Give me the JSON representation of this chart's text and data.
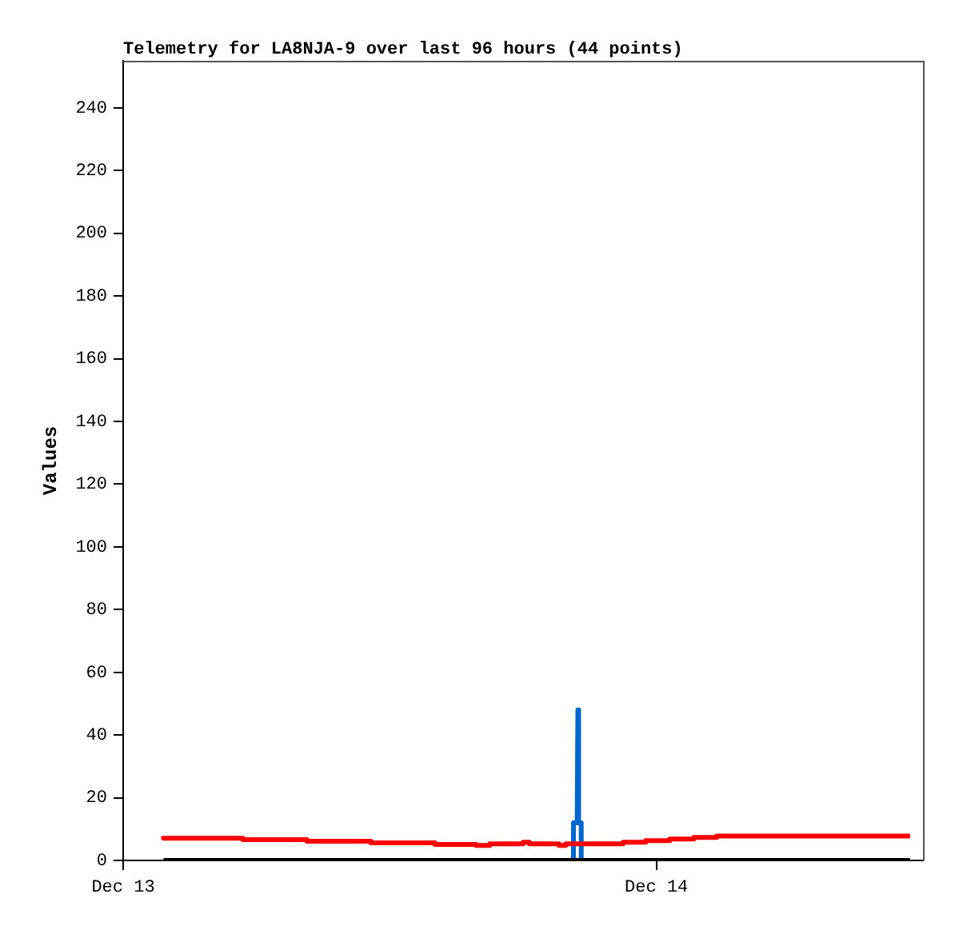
{
  "chart_data": {
    "type": "line",
    "title": "Telemetry for LA8NJA-9 over last 96 hours (44 points)",
    "ylabel": "Values",
    "xlim": [
      "--12-13",
      "--12-14T12:00"
    ],
    "xticks": [
      {
        "value": "--12-13",
        "label": "Dec 13"
      },
      {
        "value": "--12-14",
        "label": "Dec 14"
      }
    ],
    "ylim": [
      0,
      255
    ],
    "yticks": [
      0,
      20,
      40,
      60,
      80,
      100,
      120,
      140,
      160,
      180,
      200,
      220,
      240
    ],
    "grid": false,
    "legend": false,
    "marker": "none",
    "series": [
      {
        "type": "step",
        "color": "#ff0000",
        "x": [
          "--12-13T01:49",
          "--12-13T05:23",
          "--12-13T08:16",
          "--12-13T11:09",
          "--12-13T14:02",
          "--12-13T15:53",
          "--12-13T16:30",
          "--12-13T18:00",
          "--12-13T18:17",
          "--12-13T19:37",
          "--12-13T19:55",
          "--12-13T22:30",
          "--12-13T23:31",
          "--12-14T00:36",
          "--12-14T01:41",
          "--12-14T02:43",
          "--12-14T03:48",
          "--12-14T11:25"
        ],
        "values": [
          7.8,
          7.1,
          6.6,
          6.1,
          5.6,
          5.1,
          4.8,
          5.3,
          5.8,
          5.3,
          4.8,
          5.3,
          5.8,
          6.3,
          6.8,
          7.3,
          7.8,
          7.8
        ]
      },
      {
        "color": "#000000",
        "x": [
          "--12-13T01:49",
          "--12-14T11:25"
        ],
        "values": [
          0,
          0
        ]
      },
      {
        "color": "#0066cc",
        "x": [
          "--12-13T20:16",
          "--12-13T20:16",
          "--12-13T20:26",
          "--12-13T20:28",
          "--12-13T20:30",
          "--12-13T20:37",
          "--12-13T20:37"
        ],
        "values": [
          0,
          12,
          12,
          48,
          12,
          12,
          0
        ]
      }
    ]
  }
}
